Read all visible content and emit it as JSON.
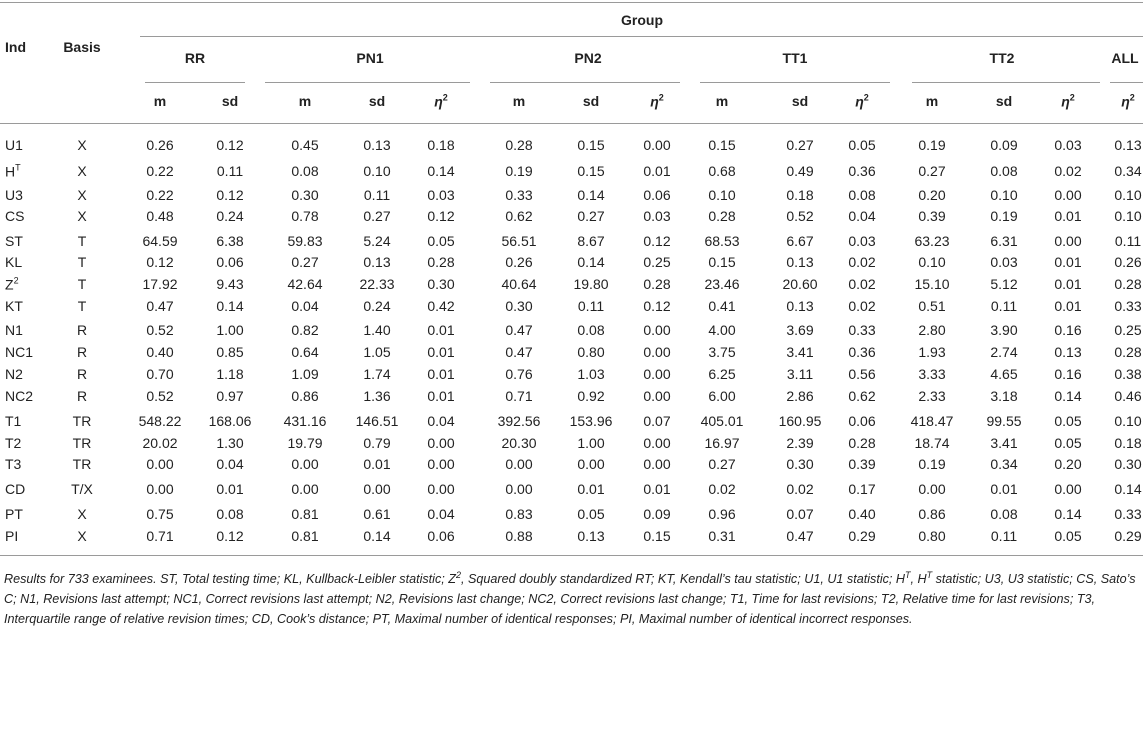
{
  "table": {
    "ind_header": "Ind",
    "basis_header": "Basis",
    "group_header": "Group",
    "groups": [
      "RR",
      "PN1",
      "PN2",
      "TT1",
      "TT2",
      "ALL"
    ],
    "subheaders": [
      "m",
      "sd",
      "m",
      "sd",
      {
        "base": "η",
        "sup": "2"
      },
      "m",
      "sd",
      {
        "base": "η",
        "sup": "2"
      },
      "m",
      "sd",
      {
        "base": "η",
        "sup": "2"
      },
      "m",
      "sd",
      {
        "base": "η",
        "sup": "2"
      },
      {
        "base": "η",
        "sup": "2"
      }
    ],
    "rows": [
      {
        "ind": "U1",
        "basis": "X",
        "cells": [
          "0.26",
          "0.12",
          "0.45",
          "0.13",
          "0.18",
          "0.28",
          "0.15",
          "0.00",
          "0.15",
          "0.27",
          "0.05",
          "0.19",
          "0.09",
          "0.03",
          "0.13"
        ]
      },
      {
        "ind": {
          "base": "H",
          "sup": "T"
        },
        "basis": "X",
        "cells": [
          "0.22",
          "0.11",
          "0.08",
          "0.10",
          "0.14",
          "0.19",
          "0.15",
          "0.01",
          "0.68",
          "0.49",
          "0.36",
          "0.27",
          "0.08",
          "0.02",
          "0.34"
        ]
      },
      {
        "ind": "U3",
        "basis": "X",
        "cells": [
          "0.22",
          "0.12",
          "0.30",
          "0.11",
          "0.03",
          "0.33",
          "0.14",
          "0.06",
          "0.10",
          "0.18",
          "0.08",
          "0.20",
          "0.10",
          "0.00",
          "0.10"
        ]
      },
      {
        "ind": "CS",
        "basis": "X",
        "cells": [
          "0.48",
          "0.24",
          "0.78",
          "0.27",
          "0.12",
          "0.62",
          "0.27",
          "0.03",
          "0.28",
          "0.52",
          "0.04",
          "0.39",
          "0.19",
          "0.01",
          "0.10"
        ]
      },
      {
        "ind": "ST",
        "basis": "T",
        "cells": [
          "64.59",
          "6.38",
          "59.83",
          "5.24",
          "0.05",
          "56.51",
          "8.67",
          "0.12",
          "68.53",
          "6.67",
          "0.03",
          "63.23",
          "6.31",
          "0.00",
          "0.11"
        ]
      },
      {
        "ind": "KL",
        "basis": "T",
        "cells": [
          "0.12",
          "0.06",
          "0.27",
          "0.13",
          "0.28",
          "0.26",
          "0.14",
          "0.25",
          "0.15",
          "0.13",
          "0.02",
          "0.10",
          "0.03",
          "0.01",
          "0.26"
        ]
      },
      {
        "ind": {
          "base": "Z",
          "sup": "2"
        },
        "basis": "T",
        "cells": [
          "17.92",
          "9.43",
          "42.64",
          "22.33",
          "0.30",
          "40.64",
          "19.80",
          "0.28",
          "23.46",
          "20.60",
          "0.02",
          "15.10",
          "5.12",
          "0.01",
          "0.28"
        ]
      },
      {
        "ind": "KT",
        "basis": "T",
        "cells": [
          "0.47",
          "0.14",
          "0.04",
          "0.24",
          "0.42",
          "0.30",
          "0.11",
          "0.12",
          "0.41",
          "0.13",
          "0.02",
          "0.51",
          "0.11",
          "0.01",
          "0.33"
        ]
      },
      {
        "ind": "N1",
        "basis": "R",
        "cells": [
          "0.52",
          "1.00",
          "0.82",
          "1.40",
          "0.01",
          "0.47",
          "0.08",
          "0.00",
          "4.00",
          "3.69",
          "0.33",
          "2.80",
          "3.90",
          "0.16",
          "0.25"
        ]
      },
      {
        "ind": "NC1",
        "basis": "R",
        "cells": [
          "0.40",
          "0.85",
          "0.64",
          "1.05",
          "0.01",
          "0.47",
          "0.80",
          "0.00",
          "3.75",
          "3.41",
          "0.36",
          "1.93",
          "2.74",
          "0.13",
          "0.28"
        ]
      },
      {
        "ind": "N2",
        "basis": "R",
        "cells": [
          "0.70",
          "1.18",
          "1.09",
          "1.74",
          "0.01",
          "0.76",
          "1.03",
          "0.00",
          "6.25",
          "3.11",
          "0.56",
          "3.33",
          "4.65",
          "0.16",
          "0.38"
        ]
      },
      {
        "ind": "NC2",
        "basis": "R",
        "cells": [
          "0.52",
          "0.97",
          "0.86",
          "1.36",
          "0.01",
          "0.71",
          "0.92",
          "0.00",
          "6.00",
          "2.86",
          "0.62",
          "2.33",
          "3.18",
          "0.14",
          "0.46"
        ]
      },
      {
        "ind": "T1",
        "basis": "TR",
        "cells": [
          "548.22",
          "168.06",
          "431.16",
          "146.51",
          "0.04",
          "392.56",
          "153.96",
          "0.07",
          "405.01",
          "160.95",
          "0.06",
          "418.47",
          "99.55",
          "0.05",
          "0.10"
        ]
      },
      {
        "ind": "T2",
        "basis": "TR",
        "cells": [
          "20.02",
          "1.30",
          "19.79",
          "0.79",
          "0.00",
          "20.30",
          "1.00",
          "0.00",
          "16.97",
          "2.39",
          "0.28",
          "18.74",
          "3.41",
          "0.05",
          "0.18"
        ]
      },
      {
        "ind": "T3",
        "basis": "TR",
        "cells": [
          "0.00",
          "0.04",
          "0.00",
          "0.01",
          "0.00",
          "0.00",
          "0.00",
          "0.00",
          "0.27",
          "0.30",
          "0.39",
          "0.19",
          "0.34",
          "0.20",
          "0.30"
        ]
      },
      {
        "ind": "CD",
        "basis": "T/X",
        "cells": [
          "0.00",
          "0.01",
          "0.00",
          "0.00",
          "0.00",
          "0.00",
          "0.01",
          "0.01",
          "0.02",
          "0.02",
          "0.17",
          "0.00",
          "0.01",
          "0.00",
          "0.14"
        ]
      },
      {
        "ind": "PT",
        "basis": "X",
        "cells": [
          "0.75",
          "0.08",
          "0.81",
          "0.61",
          "0.04",
          "0.83",
          "0.05",
          "0.09",
          "0.96",
          "0.07",
          "0.40",
          "0.86",
          "0.08",
          "0.14",
          "0.33"
        ]
      },
      {
        "ind": "PI",
        "basis": "X",
        "cells": [
          "0.71",
          "0.12",
          "0.81",
          "0.14",
          "0.06",
          "0.88",
          "0.13",
          "0.15",
          "0.31",
          "0.47",
          "0.29",
          "0.80",
          "0.11",
          "0.05",
          "0.29"
        ]
      }
    ]
  },
  "caption": [
    "Results for 733 examinees. ST, Total testing time; KL, Kullback-Leibler statistic; Z",
    {
      "sup": "2"
    },
    ", Squared doubly standardized RT; KT, Kendall’s tau statistic; U1, U1 statistic; H",
    {
      "sup": "T"
    },
    ", H",
    {
      "sup": "T"
    },
    " statistic; U3, U3 statistic; CS, Sato’s C; N1, Revisions last attempt; NC1, Correct revisions last attempt; N2, Revisions last change; NC2, Correct revisions last change; T1, Time for last revisions; T2, Relative time for last revisions; T3, Interquartile range of relative revision times; CD, Cook’s distance; PT, Maximal number of identical responses; PI, Maximal number of identical incorrect responses."
  ]
}
